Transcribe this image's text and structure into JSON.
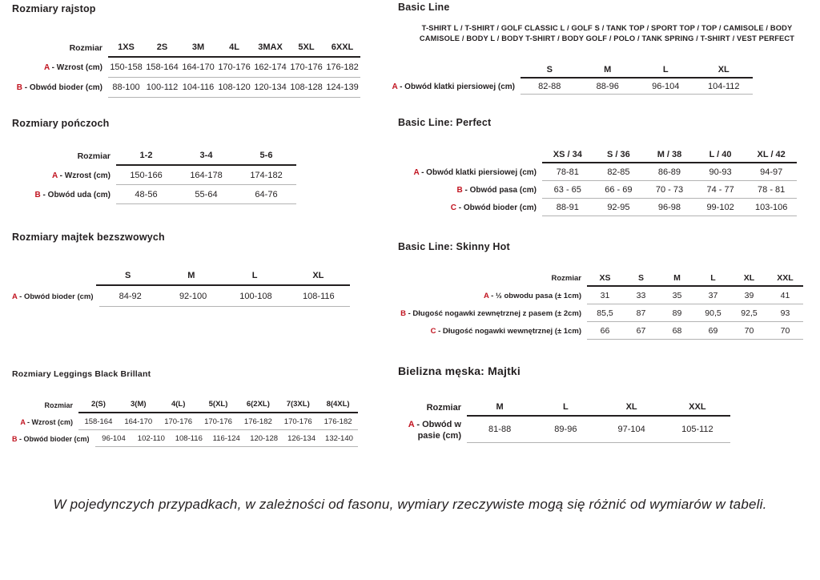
{
  "colors": {
    "text": "#231f20",
    "accent_red": "#c11420",
    "rule_thick": "#231f20",
    "rule_thin": "#b3b3b3"
  },
  "left": {
    "rajstopy": {
      "title": "Rozmiary rajstop",
      "table": {
        "label_header": "Rozmiar",
        "columns": [
          "1XS",
          "2S",
          "3M",
          "4L",
          "3MAX",
          "5XL",
          "6XXL"
        ],
        "rows": [
          {
            "letter": "A",
            "label": "Wzrost (cm)",
            "values": [
              "150-158",
              "158-164",
              "164-170",
              "170-176",
              "162-174",
              "170-176",
              "176-182"
            ]
          },
          {
            "letter": "B",
            "label": "Obwód bioder (cm)",
            "values": [
              "88-100",
              "100-112",
              "104-116",
              "108-120",
              "120-134",
              "108-128",
              "124-139"
            ]
          }
        ]
      }
    },
    "ponczochy": {
      "title": "Rozmiary pończoch",
      "table": {
        "label_header": "Rozmiar",
        "columns": [
          "1-2",
          "3-4",
          "5-6"
        ],
        "rows": [
          {
            "letter": "A",
            "label": "Wzrost (cm)",
            "values": [
              "150-166",
              "164-178",
              "174-182"
            ]
          },
          {
            "letter": "B",
            "label": "Obwód uda (cm)",
            "values": [
              "48-56",
              "55-64",
              "64-76"
            ]
          }
        ]
      }
    },
    "majtki_bezszwowe": {
      "title": "Rozmiary majtek bezszwowych",
      "table": {
        "label_header": "",
        "columns": [
          "S",
          "M",
          "L",
          "XL"
        ],
        "rows": [
          {
            "letter": "A",
            "label": "Obwód bioder (cm)",
            "values": [
              "84-92",
              "92-100",
              "100-108",
              "108-116"
            ]
          }
        ]
      }
    },
    "leggings": {
      "title": "Rozmiary Leggings Black Brillant",
      "table": {
        "label_header": "Rozmiar",
        "columns": [
          "2(S)",
          "3(M)",
          "4(L)",
          "5(XL)",
          "6(2XL)",
          "7(3XL)",
          "8(4XL)"
        ],
        "rows": [
          {
            "letter": "A",
            "label": "Wzrost (cm)",
            "values": [
              "158-164",
              "164-170",
              "170-176",
              "170-176",
              "176-182",
              "170-176",
              "176-182"
            ]
          },
          {
            "letter": "B",
            "label": "Obwód bioder (cm)",
            "values": [
              "96-104",
              "102-110",
              "108-116",
              "116-124",
              "120-128",
              "126-134",
              "132-140"
            ]
          }
        ]
      }
    }
  },
  "right": {
    "basic_line": {
      "title": "Basic Line",
      "subtitle_lines": [
        "T-SHIRT L / T-SHIRT / GOLF CLASSIC L / GOLF S / TANK TOP / SPORT TOP / TOP / CAMISOLE / BODY",
        "CAMISOLE / BODY L / BODY T-SHIRT / BODY GOLF / POLO / TANK SPRING / T-SHIRT / VEST PERFECT"
      ],
      "table": {
        "label_header": "",
        "columns": [
          "S",
          "M",
          "L",
          "XL"
        ],
        "rows": [
          {
            "letter": "A",
            "label": "Obwód klatki piersiowej (cm)",
            "values": [
              "82-88",
              "88-96",
              "96-104",
              "104-112"
            ]
          }
        ]
      }
    },
    "perfect": {
      "title": "Basic Line: Perfect",
      "table": {
        "label_header": "",
        "columns": [
          "XS / 34",
          "S / 36",
          "M / 38",
          "L / 40",
          "XL / 42"
        ],
        "rows": [
          {
            "letter": "A",
            "label": "Obwód klatki piersiowej (cm)",
            "values": [
              "78-81",
              "82-85",
              "86-89",
              "90-93",
              "94-97"
            ]
          },
          {
            "letter": "B",
            "label": "Obwód pasa (cm)",
            "values": [
              "63 - 65",
              "66 - 69",
              "70 - 73",
              "74 - 77",
              "78 - 81"
            ]
          },
          {
            "letter": "C",
            "label": "Obwód bioder (cm)",
            "values": [
              "88-91",
              "92-95",
              "96-98",
              "99-102",
              "103-106"
            ]
          }
        ]
      }
    },
    "skinny_hot": {
      "title": "Basic Line: Skinny Hot",
      "table": {
        "label_header": "Rozmiar",
        "columns": [
          "XS",
          "S",
          "M",
          "L",
          "XL",
          "XXL"
        ],
        "rows": [
          {
            "letter": "A",
            "label": "½ obwodu pasa (± 1cm)",
            "values": [
              "31",
              "33",
              "35",
              "37",
              "39",
              "41"
            ]
          },
          {
            "letter": "B",
            "label": "Długość nogawki zewnętrznej z pasem (± 2cm)",
            "values": [
              "85,5",
              "87",
              "89",
              "90,5",
              "92,5",
              "93"
            ]
          },
          {
            "letter": "C",
            "label": "Długość nogawki wewnętrznej (± 1cm)",
            "values": [
              "66",
              "67",
              "68",
              "69",
              "70",
              "70"
            ]
          }
        ]
      }
    },
    "majtki_meskie": {
      "title": "Bielizna męska: Majtki",
      "table": {
        "label_header": "Rozmiar",
        "columns": [
          "M",
          "L",
          "XL",
          "XXL"
        ],
        "rows": [
          {
            "letter": "A",
            "label": "Obwód w pasie (cm)",
            "values": [
              "81-88",
              "89-96",
              "97-104",
              "105-112"
            ]
          }
        ]
      }
    }
  },
  "footer": {
    "note": "W pojedynczych przypadkach, w zależności od fasonu, wymiary rzeczywiste mogą się różnić od wymiarów w tabeli."
  }
}
